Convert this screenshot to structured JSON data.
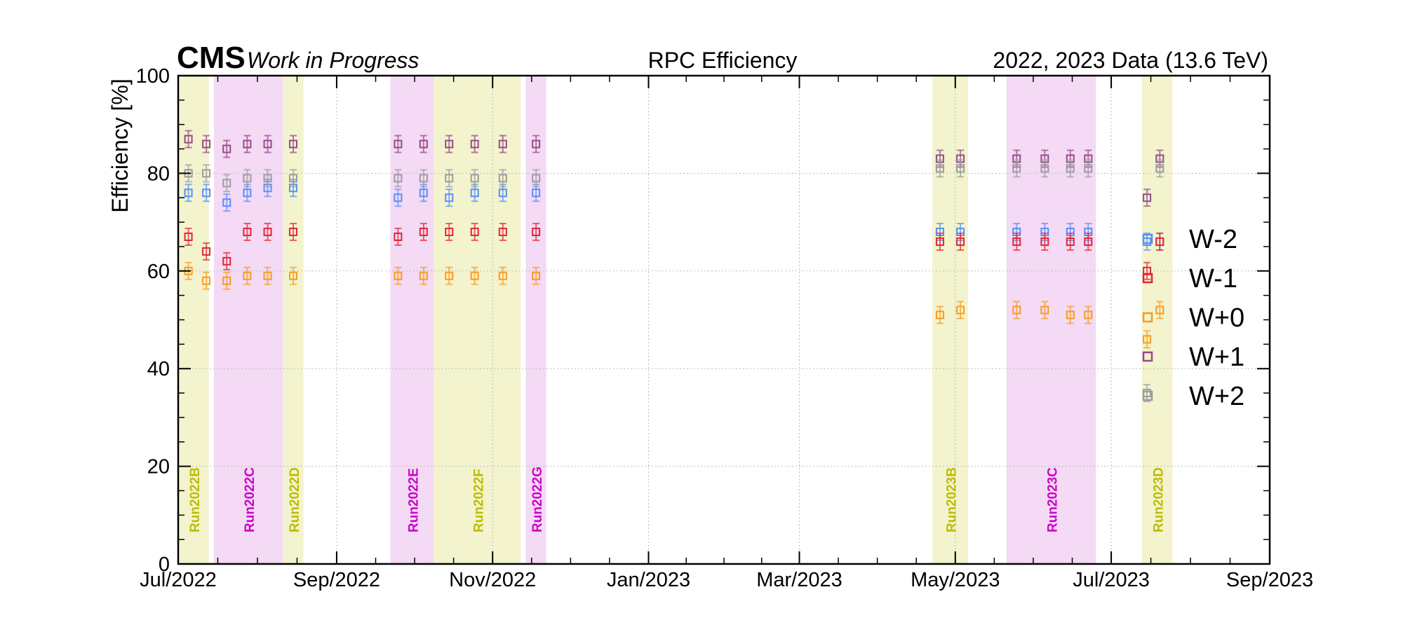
{
  "header": {
    "experiment": "CMS",
    "status": "Work in Progress",
    "title": "RPC Efficiency",
    "dataset": "2022, 2023 Data (13.6 TeV)"
  },
  "chart_data": {
    "type": "scatter",
    "title": "RPC Efficiency",
    "xlabel": "",
    "ylabel": "Efficiency [%]",
    "xlim": [
      "2022-07-01",
      "2023-09-01"
    ],
    "ylim": [
      0,
      100
    ],
    "x_ticks": [
      "2022-07-01",
      "2022-09-01",
      "2022-11-01",
      "2023-01-01",
      "2023-03-01",
      "2023-05-01",
      "2023-07-01",
      "2023-09-01"
    ],
    "x_tick_labels": [
      "Jul/2022",
      "Sep/2022",
      "Nov/2022",
      "Jan/2023",
      "Mar/2023",
      "May/2023",
      "Jul/2023",
      "Sep/2023"
    ],
    "y_ticks": [
      0,
      20,
      40,
      60,
      80,
      100
    ],
    "grid": true,
    "legend_position": "right",
    "run_periods": [
      {
        "label": "Run2022B",
        "start": "2022-07-01",
        "end": "2022-07-13",
        "color": "#f1f1c6",
        "text_color": "#bcbc00"
      },
      {
        "label": "Run2022C",
        "start": "2022-07-15",
        "end": "2022-08-11",
        "color": "#f2d4f2",
        "text_color": "#cc00cc"
      },
      {
        "label": "Run2022D",
        "start": "2022-08-11",
        "end": "2022-08-19",
        "color": "#f1f1c6",
        "text_color": "#bcbc00"
      },
      {
        "label": "Run2022E",
        "start": "2022-09-22",
        "end": "2022-10-09",
        "color": "#f2d4f2",
        "text_color": "#cc00cc"
      },
      {
        "label": "Run2022F",
        "start": "2022-10-09",
        "end": "2022-11-12",
        "color": "#f1f1c6",
        "text_color": "#bcbc00"
      },
      {
        "label": "Run2022G",
        "start": "2022-11-14",
        "end": "2022-11-22",
        "color": "#f2d4f2",
        "text_color": "#cc00cc"
      },
      {
        "label": "Run2023B",
        "start": "2023-04-22",
        "end": "2023-05-06",
        "color": "#f1f1c6",
        "text_color": "#bcbc00"
      },
      {
        "label": "Run2023C",
        "start": "2023-05-21",
        "end": "2023-06-25",
        "color": "#f2d4f2",
        "text_color": "#cc00cc"
      },
      {
        "label": "Run2023D",
        "start": "2023-07-13",
        "end": "2023-07-25",
        "color": "#f1f1c6",
        "text_color": "#bcbc00"
      }
    ],
    "series": [
      {
        "name": "W-2",
        "color": "#5790fc",
        "points": [
          [
            "2022-07-05",
            76
          ],
          [
            "2022-07-12",
            76
          ],
          [
            "2022-07-20",
            74
          ],
          [
            "2022-07-28",
            76
          ],
          [
            "2022-08-05",
            77
          ],
          [
            "2022-08-15",
            77
          ],
          [
            "2022-09-25",
            75
          ],
          [
            "2022-10-05",
            76
          ],
          [
            "2022-10-15",
            75
          ],
          [
            "2022-10-25",
            76
          ],
          [
            "2022-11-05",
            76
          ],
          [
            "2022-11-18",
            76
          ],
          [
            "2023-04-25",
            68
          ],
          [
            "2023-05-03",
            68
          ],
          [
            "2023-05-25",
            68
          ],
          [
            "2023-06-05",
            68
          ],
          [
            "2023-06-15",
            68
          ],
          [
            "2023-06-22",
            68
          ],
          [
            "2023-07-15",
            66
          ],
          [
            "2023-07-20",
            66
          ]
        ]
      },
      {
        "name": "W-1",
        "color": "#e42536",
        "points": [
          [
            "2022-07-05",
            67
          ],
          [
            "2022-07-12",
            64
          ],
          [
            "2022-07-20",
            62
          ],
          [
            "2022-07-28",
            68
          ],
          [
            "2022-08-05",
            68
          ],
          [
            "2022-08-15",
            68
          ],
          [
            "2022-09-25",
            67
          ],
          [
            "2022-10-05",
            68
          ],
          [
            "2022-10-15",
            68
          ],
          [
            "2022-10-25",
            68
          ],
          [
            "2022-11-05",
            68
          ],
          [
            "2022-11-18",
            68
          ],
          [
            "2023-04-25",
            66
          ],
          [
            "2023-05-03",
            66
          ],
          [
            "2023-05-25",
            66
          ],
          [
            "2023-06-05",
            66
          ],
          [
            "2023-06-15",
            66
          ],
          [
            "2023-06-22",
            66
          ],
          [
            "2023-07-15",
            60
          ],
          [
            "2023-07-20",
            66
          ]
        ]
      },
      {
        "name": "W+0",
        "color": "#f89c20",
        "points": [
          [
            "2022-07-05",
            60
          ],
          [
            "2022-07-12",
            58
          ],
          [
            "2022-07-20",
            58
          ],
          [
            "2022-07-28",
            59
          ],
          [
            "2022-08-05",
            59
          ],
          [
            "2022-08-15",
            59
          ],
          [
            "2022-09-25",
            59
          ],
          [
            "2022-10-05",
            59
          ],
          [
            "2022-10-15",
            59
          ],
          [
            "2022-10-25",
            59
          ],
          [
            "2022-11-05",
            59
          ],
          [
            "2022-11-18",
            59
          ],
          [
            "2023-04-25",
            51
          ],
          [
            "2023-05-03",
            52
          ],
          [
            "2023-05-25",
            52
          ],
          [
            "2023-06-05",
            52
          ],
          [
            "2023-06-15",
            51
          ],
          [
            "2023-06-22",
            51
          ],
          [
            "2023-07-15",
            46
          ],
          [
            "2023-07-20",
            52
          ]
        ]
      },
      {
        "name": "W+1",
        "color": "#964a8b",
        "points": [
          [
            "2022-07-05",
            87
          ],
          [
            "2022-07-12",
            86
          ],
          [
            "2022-07-20",
            85
          ],
          [
            "2022-07-28",
            86
          ],
          [
            "2022-08-05",
            86
          ],
          [
            "2022-08-15",
            86
          ],
          [
            "2022-09-25",
            86
          ],
          [
            "2022-10-05",
            86
          ],
          [
            "2022-10-15",
            86
          ],
          [
            "2022-10-25",
            86
          ],
          [
            "2022-11-05",
            86
          ],
          [
            "2022-11-18",
            86
          ],
          [
            "2023-04-25",
            83
          ],
          [
            "2023-05-03",
            83
          ],
          [
            "2023-05-25",
            83
          ],
          [
            "2023-06-05",
            83
          ],
          [
            "2023-06-15",
            83
          ],
          [
            "2023-06-22",
            83
          ],
          [
            "2023-07-15",
            75
          ],
          [
            "2023-07-20",
            83
          ]
        ]
      },
      {
        "name": "W+2",
        "color": "#9c9ca1",
        "points": [
          [
            "2022-07-05",
            80
          ],
          [
            "2022-07-12",
            80
          ],
          [
            "2022-07-20",
            78
          ],
          [
            "2022-07-28",
            79
          ],
          [
            "2022-08-05",
            79
          ],
          [
            "2022-08-15",
            79
          ],
          [
            "2022-09-25",
            79
          ],
          [
            "2022-10-05",
            79
          ],
          [
            "2022-10-15",
            79
          ],
          [
            "2022-10-25",
            79
          ],
          [
            "2022-11-05",
            79
          ],
          [
            "2022-11-18",
            79
          ],
          [
            "2023-04-25",
            81
          ],
          [
            "2023-05-03",
            81
          ],
          [
            "2023-05-25",
            81
          ],
          [
            "2023-06-05",
            81
          ],
          [
            "2023-06-15",
            81
          ],
          [
            "2023-06-22",
            81
          ],
          [
            "2023-07-15",
            35
          ],
          [
            "2023-07-20",
            81
          ]
        ]
      }
    ]
  }
}
